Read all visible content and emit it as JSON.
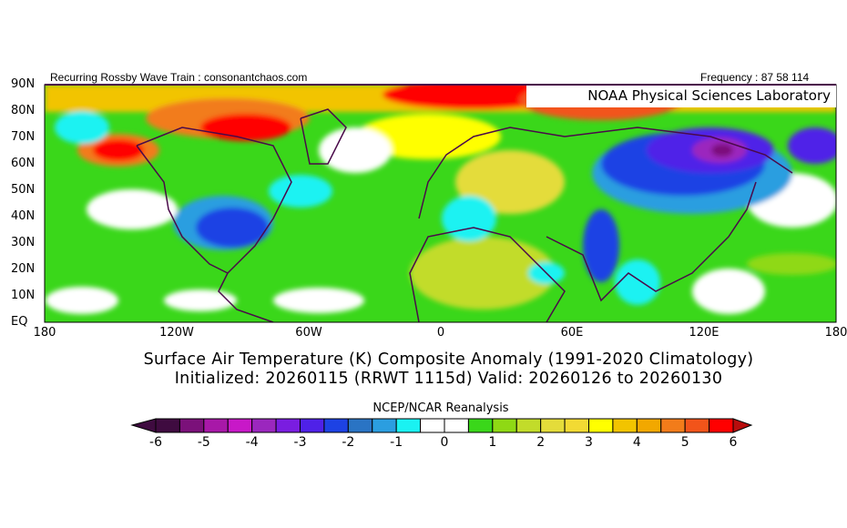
{
  "header": {
    "left": "Recurring Rossby Wave Train : consonantchaos.com",
    "right": "Frequency : 87 58 114",
    "org": "NOAA Physical Sciences Laboratory"
  },
  "map": {
    "lat_labels": [
      "90N",
      "80N",
      "70N",
      "60N",
      "50N",
      "40N",
      "30N",
      "20N",
      "10N",
      "EQ"
    ],
    "lon_labels": [
      "180",
      "120W",
      "60W",
      "0",
      "60E",
      "120E",
      "180"
    ]
  },
  "title": {
    "line1": "Surface Air Temperature (K) Composite Anomaly (1991-2020 Climatology)",
    "line2": "Initialized: 20260115 (RRWT 1115d) Valid: 20260126 to 20260130"
  },
  "colorbar": {
    "label": "NCEP/NCAR Reanalysis",
    "tick_labels": [
      "-6",
      "-5",
      "-4",
      "-3",
      "-2",
      "-1",
      "0",
      "1",
      "2",
      "3",
      "4",
      "5",
      "6"
    ],
    "low_color": "#3f0b40",
    "high_color": "#b80c0c",
    "colors": [
      "#3f0b40",
      "#7b117a",
      "#a818a8",
      "#c818c8",
      "#9b27be",
      "#7a1de0",
      "#4f21e8",
      "#1d42e4",
      "#2a74c4",
      "#2b9ee0",
      "#1af2f2",
      "#ffffff",
      "#ffffff",
      "#3ad71a",
      "#8fd914",
      "#c2dc2a",
      "#e4dc3a",
      "#f2da33",
      "#ffff00",
      "#f2c400",
      "#f2a800",
      "#f27c1a",
      "#f2541a",
      "#ff0000"
    ]
  }
}
